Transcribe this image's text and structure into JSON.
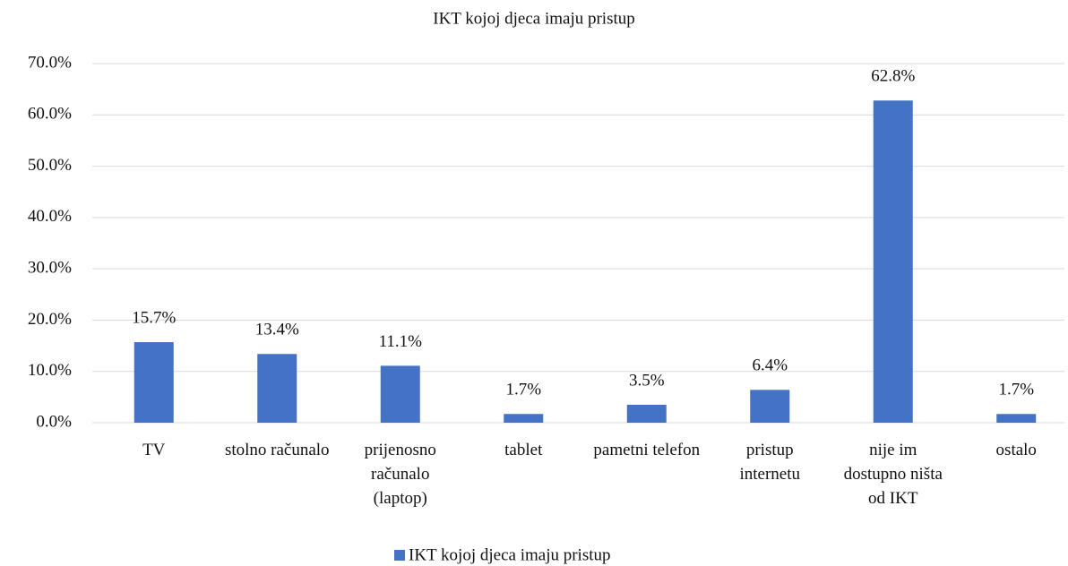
{
  "chart_data": {
    "type": "bar",
    "title": "IKT kojoj djeca imaju pristup",
    "categories": [
      "TV",
      "stolno računalo",
      "prijenosno računalo (laptop)",
      "tablet",
      "pametni telefon",
      "pristup internetu",
      "nije im dostupno ništa od IKT",
      "ostalo"
    ],
    "series": [
      {
        "name": "IKT kojoj djeca imaju pristup",
        "color": "#4472c4",
        "values": [
          15.7,
          13.4,
          11.1,
          1.7,
          3.5,
          6.4,
          62.8,
          1.7
        ],
        "value_labels": [
          "15.7%",
          "13.4%",
          "11.1%",
          "1.7%",
          "3.5%",
          "6.4%",
          "62.8%",
          "1.7%"
        ]
      }
    ],
    "ylim": [
      0,
      70
    ],
    "yticks": [
      {
        "value": 0,
        "label": "0.0%"
      },
      {
        "value": 10,
        "label": "10.0%"
      },
      {
        "value": 20,
        "label": "20.0%"
      },
      {
        "value": 30,
        "label": "30.0%"
      },
      {
        "value": 40,
        "label": "40.0%"
      },
      {
        "value": 50,
        "label": "50.0%"
      },
      {
        "value": 60,
        "label": "60.0%"
      },
      {
        "value": 70,
        "label": "70.0%"
      }
    ],
    "grid": true,
    "legend": "bottom"
  }
}
